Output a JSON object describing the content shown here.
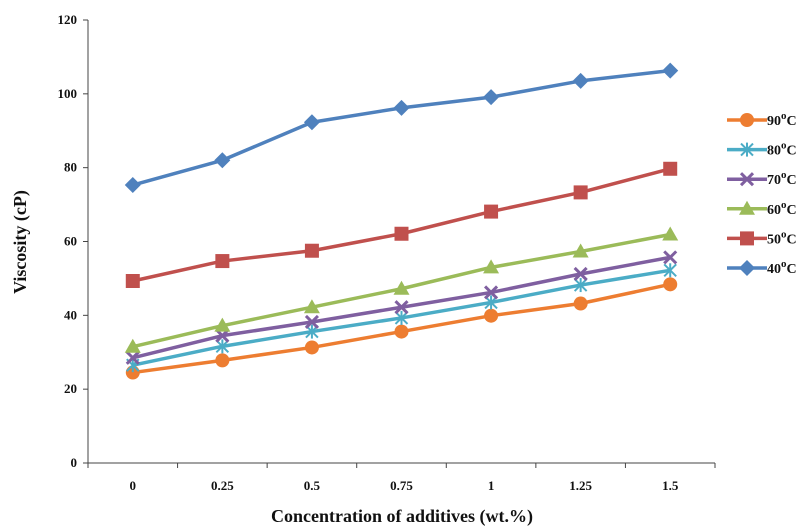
{
  "chart_data": {
    "type": "line",
    "title": "",
    "xlabel": "Concentration of additives (wt.%)",
    "ylabel": "Viscosity (cP)",
    "categories": [
      "0",
      "0.25",
      "0.5",
      "0.75",
      "1",
      "1.25",
      "1.5"
    ],
    "x": [
      0,
      0.25,
      0.5,
      0.75,
      1,
      1.25,
      1.5
    ],
    "ylim": [
      0,
      120
    ],
    "yticks": [
      "0",
      "20",
      "40",
      "60",
      "80",
      "100",
      "120"
    ],
    "grid": false,
    "legend_position": "right",
    "series": [
      {
        "name": "90",
        "unit": "C",
        "superscript": "o",
        "marker": "circle",
        "color": "#ED7D31",
        "values": [
          24.5,
          27.8,
          31.3,
          35.6,
          39.9,
          43.2,
          48.4
        ]
      },
      {
        "name": "80",
        "unit": "C",
        "superscript": "o",
        "marker": "star",
        "color": "#4BACC6",
        "values": [
          26.5,
          31.6,
          35.6,
          39.3,
          43.5,
          48.2,
          52.2
        ]
      },
      {
        "name": "70",
        "unit": "C",
        "superscript": "o",
        "marker": "x",
        "color": "#7F5FA0",
        "values": [
          28.5,
          34.5,
          38.2,
          42.2,
          46.2,
          51.2,
          55.7
        ]
      },
      {
        "name": "60",
        "unit": "C",
        "superscript": "o",
        "marker": "triangle",
        "color": "#9BBB59",
        "values": [
          31.5,
          37.2,
          42.2,
          47.2,
          53.0,
          57.3,
          61.9
        ]
      },
      {
        "name": "50",
        "unit": "C",
        "superscript": "o",
        "marker": "square",
        "color": "#C0504D",
        "values": [
          49.3,
          54.7,
          57.5,
          62.1,
          68.1,
          73.3,
          79.7
        ]
      },
      {
        "name": "40",
        "unit": "C",
        "superscript": "o",
        "marker": "diamond",
        "color": "#4F81BD",
        "values": [
          75.3,
          82.0,
          92.3,
          96.2,
          99.1,
          103.5,
          106.3
        ]
      }
    ]
  }
}
